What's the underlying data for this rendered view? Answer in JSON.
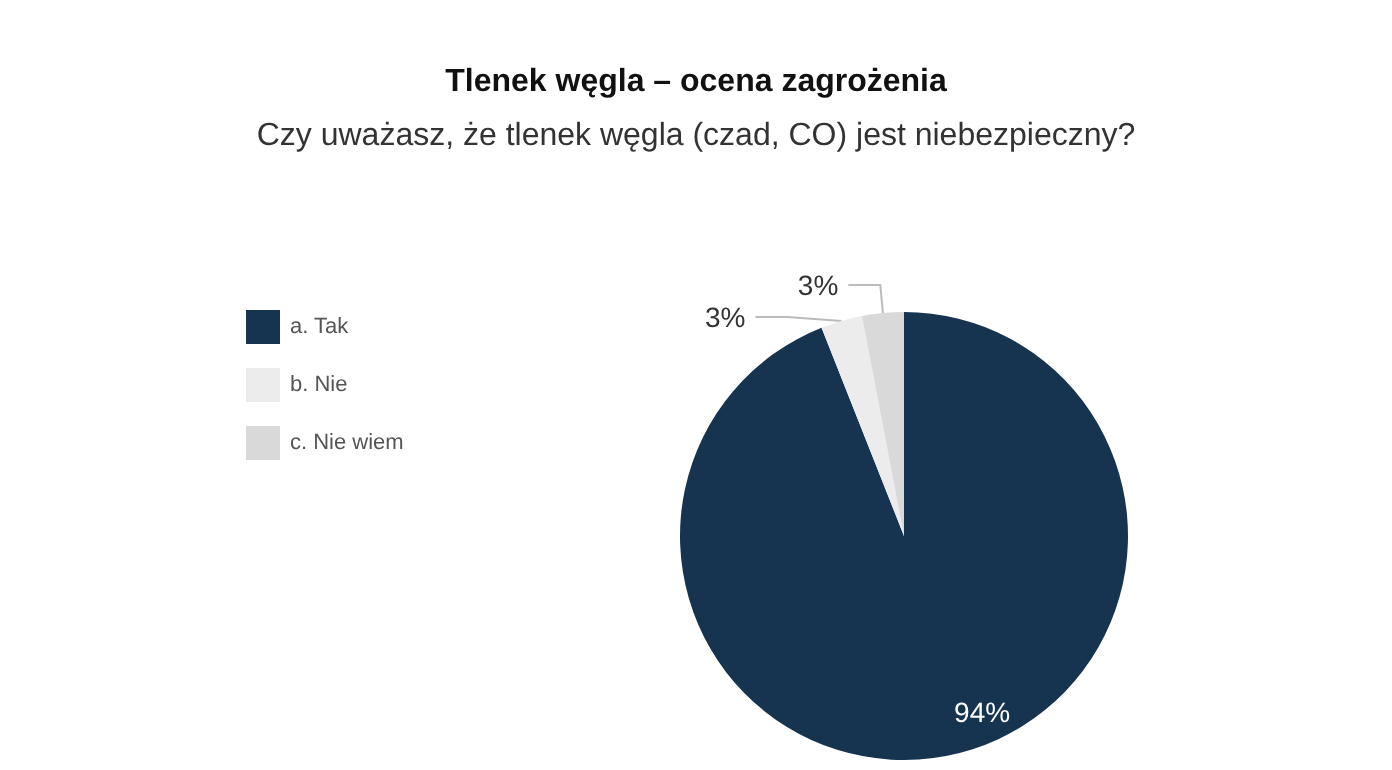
{
  "chart_data": {
    "type": "pie",
    "title": "Tlenek węgla – ocena zagrożenia",
    "subtitle": "Czy uważasz, że tlenek węgla (czad, CO) jest niebezpieczny?",
    "categories": [
      "a. Tak",
      "b. Nie",
      "c. Nie wiem"
    ],
    "values": [
      94,
      3,
      3
    ],
    "colors": [
      "#163450",
      "#ececec",
      "#d9d9d9"
    ],
    "value_labels": [
      "94%",
      "3%",
      "3%"
    ],
    "legend": "left"
  }
}
